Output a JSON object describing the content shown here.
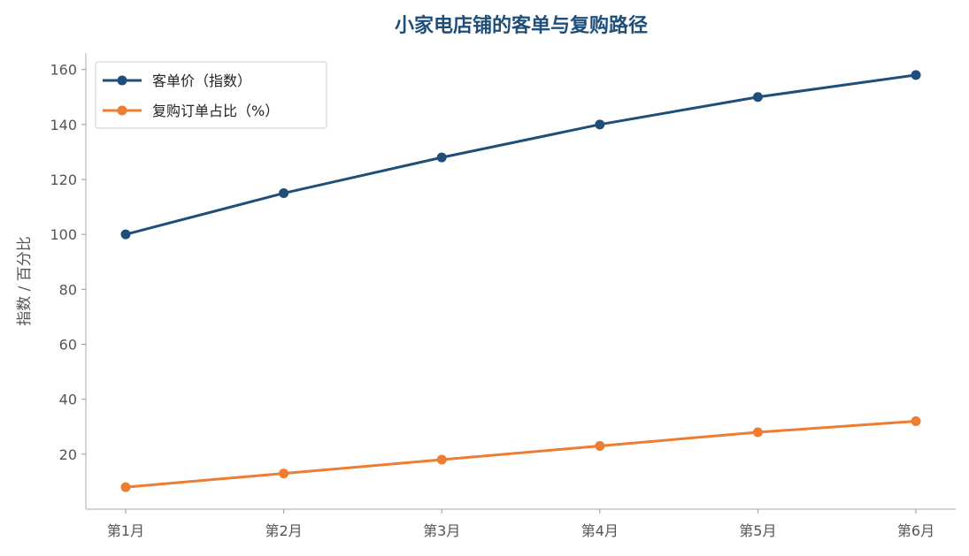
{
  "chart_data": {
    "type": "line",
    "title": "小家电店铺的客单与复购路径",
    "xlabel": "",
    "ylabel": "指数 / 百分比",
    "categories": [
      "第1月",
      "第2月",
      "第3月",
      "第4月",
      "第5月",
      "第6月"
    ],
    "series": [
      {
        "name": "客单价（指数）",
        "values": [
          100,
          115,
          128,
          140,
          150,
          158
        ],
        "color": "#1f4e79"
      },
      {
        "name": "复购订单占比（%）",
        "values": [
          8,
          13,
          18,
          23,
          28,
          32
        ],
        "color": "#ed7d31"
      }
    ],
    "ylim": [
      0,
      166
    ],
    "yticks": [
      20,
      40,
      60,
      80,
      100,
      120,
      140,
      160
    ],
    "grid": false,
    "legend": "top-left"
  }
}
